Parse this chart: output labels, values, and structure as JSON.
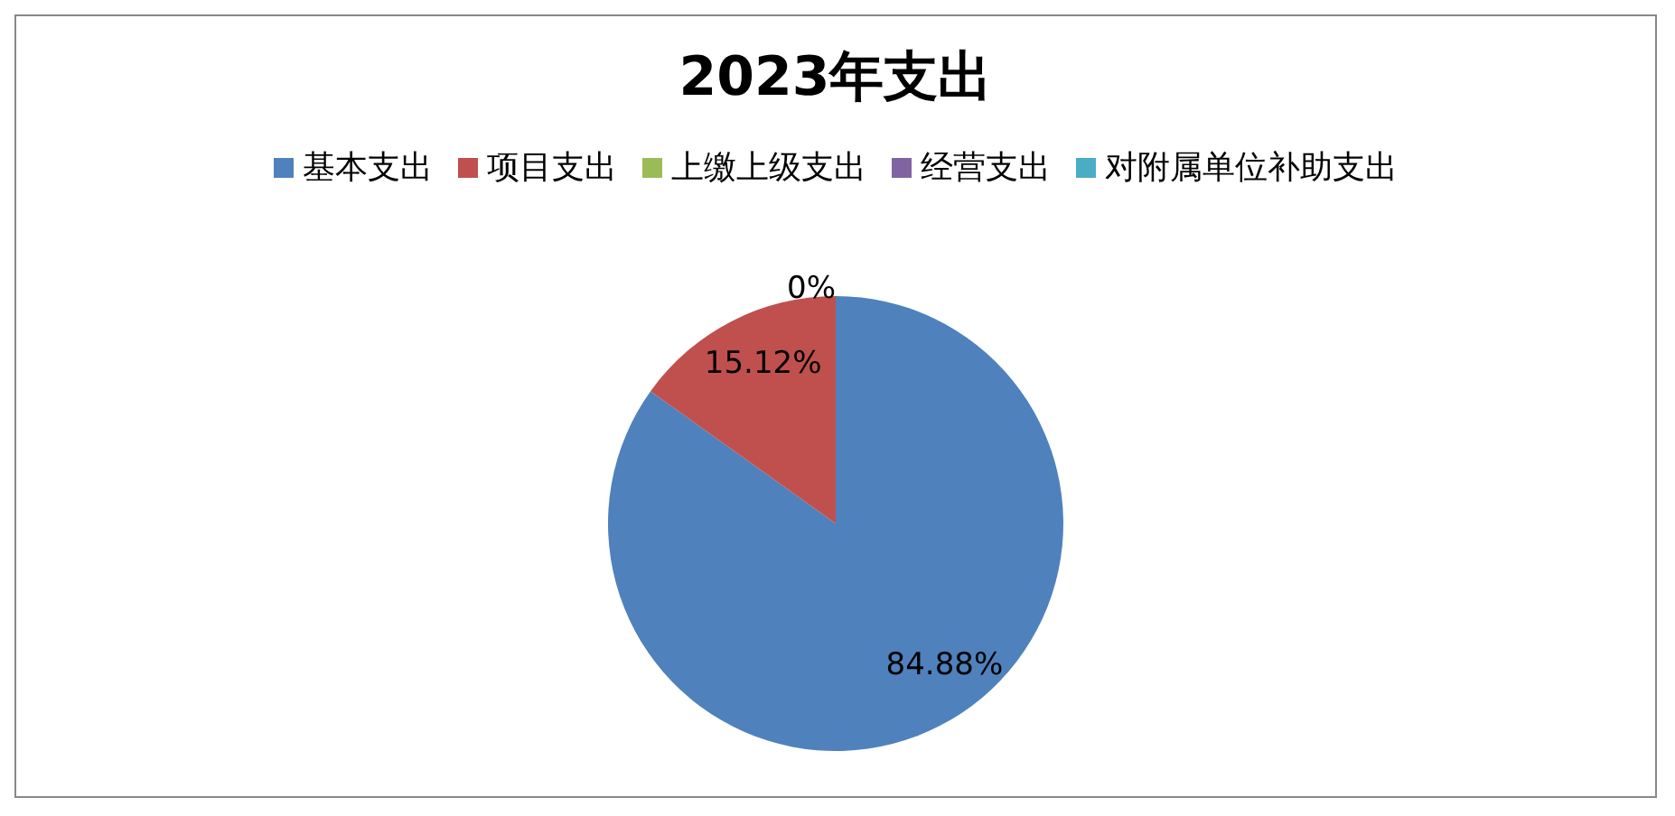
{
  "chart_data": {
    "type": "pie",
    "title": "2023年支出",
    "categories": [
      "基本支出",
      "项目支出",
      "上缴上级支出",
      "经营支出",
      "对附属单位补助支出"
    ],
    "values": [
      84.88,
      15.12,
      0,
      0,
      0
    ],
    "colors": [
      "#4f81bd",
      "#c0504d",
      "#9bbb59",
      "#8064a2",
      "#4bacc6"
    ],
    "value_labels": [
      "84.88%",
      "15.12%",
      "0%",
      null,
      null
    ],
    "legend": "top"
  }
}
